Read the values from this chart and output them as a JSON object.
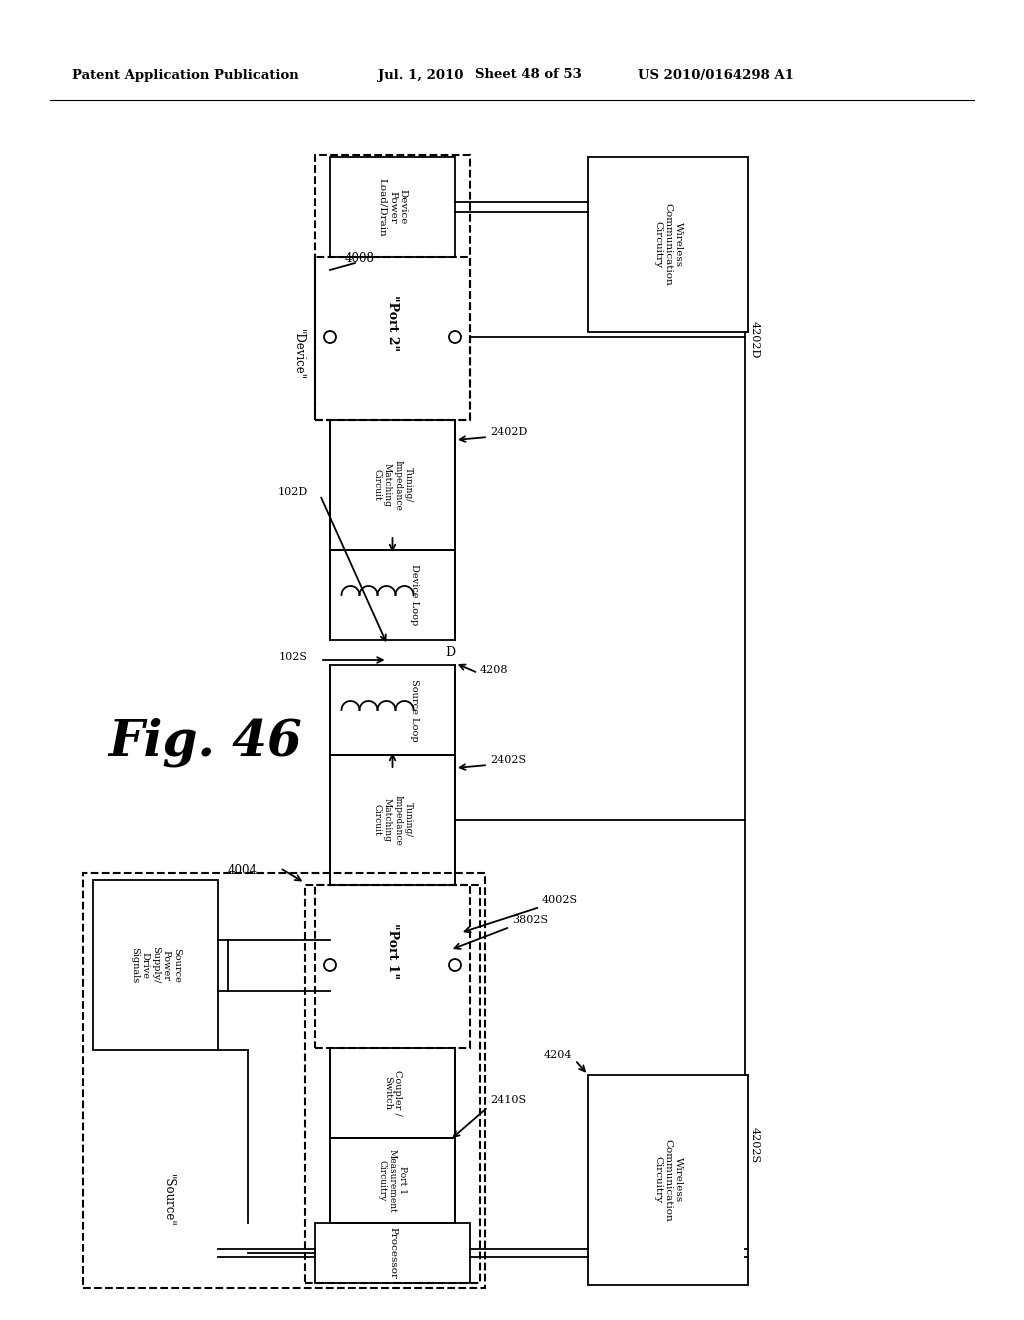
{
  "background_color": "#ffffff",
  "header_left": "Patent Application Publication",
  "header_date": "Jul. 1, 2010",
  "header_sheet": "Sheet 48 of 53",
  "header_right": "US 2010/0164298 A1",
  "fig_label": "Fig. 46"
}
